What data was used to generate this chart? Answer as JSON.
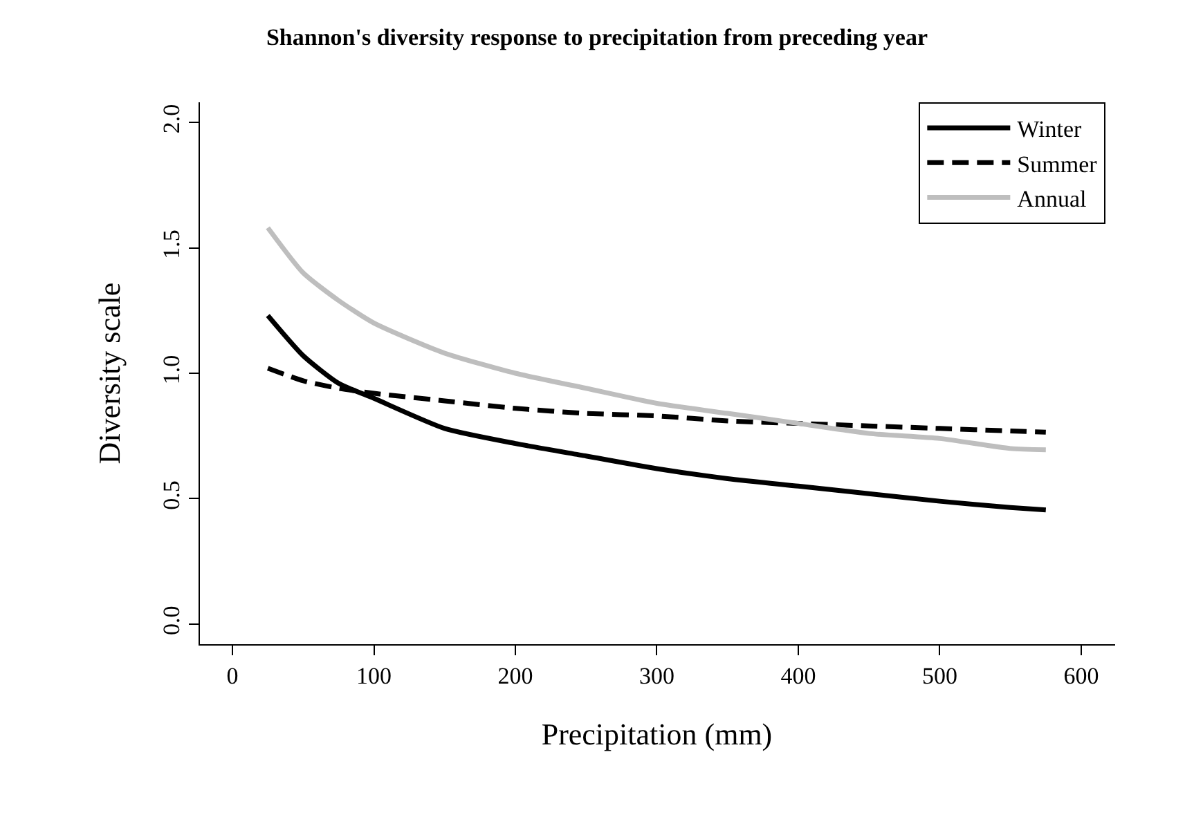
{
  "chart_data": {
    "type": "line",
    "title": "Shannon's diversity response to precipitation from preceding year",
    "xlabel": "Precipitation (mm)",
    "ylabel": "Diversity scale",
    "x": [
      25,
      50,
      75,
      100,
      150,
      200,
      250,
      300,
      350,
      400,
      450,
      500,
      550,
      575
    ],
    "series": [
      {
        "name": "Winter",
        "color": "#000000",
        "line_style": "solid",
        "values": [
          1.23,
          1.07,
          0.96,
          0.9,
          0.78,
          0.72,
          0.67,
          0.62,
          0.58,
          0.55,
          0.52,
          0.49,
          0.465,
          0.455
        ]
      },
      {
        "name": "Summer",
        "color": "#000000",
        "line_style": "dashed",
        "values": [
          1.02,
          0.97,
          0.94,
          0.92,
          0.89,
          0.86,
          0.84,
          0.83,
          0.81,
          0.8,
          0.79,
          0.78,
          0.77,
          0.765
        ]
      },
      {
        "name": "Annual",
        "color": "#bebebe",
        "line_style": "solid",
        "values": [
          1.58,
          1.4,
          1.29,
          1.2,
          1.08,
          1.0,
          0.94,
          0.88,
          0.84,
          0.8,
          0.76,
          0.74,
          0.7,
          0.695
        ]
      }
    ],
    "xlim": [
      -24,
      624
    ],
    "xticks": [
      0,
      100,
      200,
      300,
      400,
      500,
      600
    ],
    "ylim": [
      -0.08,
      2.08
    ],
    "yticks": [
      {
        "value": 0,
        "label": "0.0"
      },
      {
        "value": 0.5,
        "label": "0.5"
      },
      {
        "value": 1,
        "label": "1.0"
      },
      {
        "value": 1.5,
        "label": "1.5"
      },
      {
        "value": 2,
        "label": "2.0"
      }
    ],
    "grid": false,
    "legend": "top right",
    "marker": "none"
  }
}
